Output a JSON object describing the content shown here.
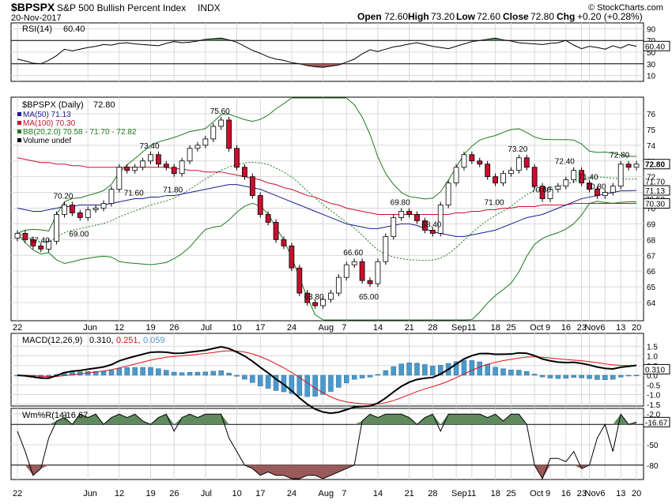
{
  "header": {
    "symbol": "$BPSPX",
    "name": "S&P 500 Bullish Percent Index",
    "exchange": "INDX",
    "date": "20-Nov-2017",
    "open_label": "Open",
    "open": "72.60",
    "high_label": "High",
    "high": "73.20",
    "low_label": "Low",
    "low": "72.60",
    "close_label": "Close",
    "close": "72.80",
    "chg_label": "Chg",
    "chg": "+0.20 (+0.28%)",
    "watermark": "© StockCharts.com"
  },
  "colors": {
    "up_candle": "#ffffff",
    "down_candle": "#c8102e",
    "candle_outline": "#000000",
    "ma50": "#1c1c8c",
    "ma100": "#c8102e",
    "bollinger": "#1e7a1e",
    "macd_line": "#000000",
    "macd_signal": "#e01010",
    "macd_hist": "#4a9acb",
    "overbought_fill": "#5e8a5e",
    "oversold_fill": "#9a5a5a",
    "grid": "#d8d8d8",
    "panel_border": "#000000"
  },
  "chart_data": [
    {
      "type": "line",
      "panel": "rsi",
      "title": "RSI(14)",
      "value_text": "60.40",
      "yticks": [
        "90",
        "70",
        "50",
        "30",
        "10"
      ],
      "ylim": [
        0,
        100
      ],
      "levels": [
        70,
        30
      ],
      "current_label": "60.40",
      "values": [
        38,
        35,
        31,
        30,
        36,
        44,
        55,
        52,
        55,
        58,
        60,
        63,
        62,
        65,
        66,
        64,
        63,
        62,
        61,
        65,
        68,
        66,
        67,
        69,
        72,
        73,
        74,
        71,
        67,
        60,
        53,
        48,
        42,
        38,
        36,
        32,
        30,
        27,
        25,
        24,
        26,
        28,
        33,
        38,
        47,
        54,
        51,
        55,
        59,
        61,
        64,
        66,
        63,
        60,
        58,
        56,
        60,
        64,
        68,
        70,
        72,
        74,
        71,
        69,
        66,
        65,
        64,
        63,
        65,
        66,
        70,
        62,
        56,
        60,
        58,
        55,
        61,
        57,
        63,
        60
      ]
    },
    {
      "type": "candlestick",
      "panel": "price",
      "title": "$BPSPX (Daily)",
      "value_text": "72.80",
      "legend": [
        {
          "label": "MA(50)",
          "value": "71.13",
          "color_key": "ma50"
        },
        {
          "label": "MA(100)",
          "value": "70.30",
          "color_key": "ma100"
        },
        {
          "label": "BB(20,2.0)",
          "value": "70.58 - 71.70 - 72.82",
          "color_key": "bollinger"
        },
        {
          "label": "Volume undef",
          "value": "",
          "color_key": "candle_outline"
        }
      ],
      "yticks": [
        "76",
        "75",
        "74",
        "73",
        "72",
        "71",
        "70",
        "69",
        "68",
        "67",
        "66",
        "65",
        "64"
      ],
      "ylim": [
        63.4,
        77.0
      ],
      "close": [
        68.4,
        68.0,
        67.6,
        67.4,
        67.9,
        69.6,
        70.2,
        69.7,
        69.4,
        69.9,
        70.0,
        70.3,
        71.2,
        72.6,
        72.4,
        72.6,
        73.0,
        73.4,
        72.8,
        72.6,
        72.2,
        73.0,
        73.8,
        74.0,
        74.4,
        75.2,
        75.6,
        73.8,
        72.6,
        72.0,
        70.8,
        69.6,
        69.1,
        68.0,
        67.6,
        66.2,
        64.6,
        64.0,
        63.8,
        64.2,
        64.6,
        65.6,
        66.4,
        66.6,
        65.4,
        65.2,
        66.6,
        68.2,
        69.4,
        69.8,
        69.6,
        69.2,
        68.6,
        68.4,
        70.2,
        71.6,
        72.6,
        73.4,
        73.0,
        72.8,
        72.0,
        71.6,
        72.2,
        72.4,
        73.2,
        72.6,
        71.4,
        70.6,
        71.2,
        71.4,
        71.8,
        72.4,
        71.6,
        71.2,
        70.8,
        71.0,
        71.4,
        72.8,
        72.6,
        72.8
      ],
      "ma50": [
        70.0,
        69.9,
        69.8,
        69.8,
        69.9,
        70.0,
        70.1,
        70.1,
        70.2,
        70.2,
        70.2,
        70.2,
        70.3,
        70.4,
        70.5,
        70.6,
        70.6,
        70.7,
        70.7,
        70.8,
        70.8,
        70.9,
        71.0,
        71.1,
        71.2,
        71.3,
        71.4,
        71.5,
        71.5,
        71.4,
        71.3,
        71.2,
        71.0,
        70.8,
        70.6,
        70.4,
        70.2,
        70.0,
        69.8,
        69.6,
        69.4,
        69.2,
        69.0,
        68.9,
        68.8,
        68.7,
        68.7,
        68.8,
        68.9,
        69.0,
        69.0,
        68.9,
        68.7,
        68.5,
        68.4,
        68.3,
        68.2,
        68.2,
        68.3,
        68.4,
        68.5,
        68.6,
        68.8,
        69.0,
        69.2,
        69.4,
        69.5,
        69.6,
        69.8,
        70.0,
        70.2,
        70.4,
        70.6,
        70.7,
        70.8,
        70.9,
        71.0,
        71.1,
        71.1,
        71.13
      ],
      "ma100": [
        73.2,
        73.1,
        73.0,
        72.9,
        72.9,
        72.8,
        72.8,
        72.7,
        72.7,
        72.6,
        72.6,
        72.6,
        72.6,
        72.6,
        72.6,
        72.6,
        72.6,
        72.6,
        72.6,
        72.6,
        72.5,
        72.5,
        72.4,
        72.4,
        72.3,
        72.3,
        72.3,
        72.2,
        72.1,
        72.0,
        71.9,
        71.8,
        71.6,
        71.5,
        71.3,
        71.2,
        71.0,
        70.8,
        70.7,
        70.5,
        70.3,
        70.2,
        70.0,
        69.9,
        69.8,
        69.7,
        69.6,
        69.6,
        69.6,
        69.6,
        69.6,
        69.6,
        69.6,
        69.6,
        69.6,
        69.6,
        69.7,
        69.7,
        69.8,
        69.8,
        69.9,
        69.9,
        70.0,
        70.0,
        70.1,
        70.1,
        70.1,
        70.2,
        70.2,
        70.2,
        70.2,
        70.3,
        70.3,
        70.3,
        70.3,
        70.3,
        70.3,
        70.3,
        70.3,
        70.3
      ],
      "annotations": [
        {
          "i": 3,
          "v": 67.4,
          "text": "67.40"
        },
        {
          "i": 6,
          "v": 70.2,
          "text": "70.20"
        },
        {
          "i": 8,
          "v": 69.0,
          "text": "69.00"
        },
        {
          "i": 15,
          "v": 71.6,
          "text": "71.60"
        },
        {
          "i": 17,
          "v": 73.4,
          "text": "73.40"
        },
        {
          "i": 20,
          "v": 71.8,
          "text": "71.80"
        },
        {
          "i": 26,
          "v": 75.6,
          "text": "75.60"
        },
        {
          "i": 38,
          "v": 63.8,
          "text": "63.80"
        },
        {
          "i": 43,
          "v": 66.6,
          "text": "66.60"
        },
        {
          "i": 45,
          "v": 65.0,
          "text": "65.00"
        },
        {
          "i": 49,
          "v": 69.8,
          "text": "69.80"
        },
        {
          "i": 53,
          "v": 68.4,
          "text": "68.40"
        },
        {
          "i": 61,
          "v": 71.0,
          "text": "71.00"
        },
        {
          "i": 64,
          "v": 73.2,
          "text": "73.20"
        },
        {
          "i": 67,
          "v": 70.6,
          "text": "70.60"
        },
        {
          "i": 70,
          "v": 72.4,
          "text": "72.40"
        },
        {
          "i": 73,
          "v": 71.4,
          "text": "71.40"
        },
        {
          "i": 74,
          "v": 70.8,
          "text": "70.80"
        },
        {
          "i": 77,
          "v": 72.8,
          "text": "72.80"
        }
      ],
      "right_labels": [
        {
          "v": 72.8,
          "text": "72.80",
          "style": "box"
        },
        {
          "v": 71.7,
          "text": "71.70",
          "style": "plain"
        },
        {
          "v": 71.13,
          "text": "71.13",
          "style": "box"
        },
        {
          "v": 70.58,
          "text": "70.58",
          "style": "plain"
        },
        {
          "v": 70.3,
          "text": "70.30",
          "style": "box"
        }
      ]
    },
    {
      "type": "area",
      "panel": "macd",
      "title": "MACD(12,26,9)",
      "values_text": [
        "0.310,",
        "0.251,",
        "0.059"
      ],
      "yticks": [
        "1.5",
        "1.0",
        "0.5",
        "0.0",
        "-0.5",
        "-1.0",
        "-1.5",
        "-2.0"
      ],
      "ylim": [
        -2.4,
        1.9
      ],
      "current_label": "0.310"
    },
    {
      "type": "area",
      "panel": "williams",
      "title": "Wm%R(14)",
      "value_text": "-16.67",
      "yticks": [
        "-50",
        "-80"
      ],
      "ylim": [
        -100,
        0
      ],
      "levels": [
        -20,
        -80
      ],
      "current_label": "-16.67",
      "values": [
        -30,
        -60,
        -95,
        -85,
        -40,
        -15,
        -10,
        -20,
        -5,
        -10,
        -5,
        -20,
        -10,
        -5,
        -10,
        -5,
        -15,
        -20,
        -10,
        -5,
        -30,
        -10,
        -5,
        -10,
        -5,
        -5,
        -5,
        -40,
        -60,
        -80,
        -85,
        -95,
        -90,
        -95,
        -95,
        -100,
        -100,
        -95,
        -95,
        -100,
        -95,
        -90,
        -85,
        -80,
        -15,
        -5,
        -10,
        -5,
        -5,
        -5,
        -10,
        -20,
        -10,
        -5,
        -30,
        -5,
        -5,
        -5,
        -5,
        -5,
        -10,
        -5,
        -15,
        -5,
        -5,
        -20,
        -80,
        -100,
        -70,
        -70,
        -75,
        -60,
        -85,
        -80,
        -40,
        -20,
        -60,
        -5,
        -20,
        -16.67
      ]
    }
  ],
  "x_axis": {
    "ticks": [
      {
        "i": 0,
        "text": "22"
      },
      {
        "i": 10,
        "text": "Jun"
      },
      {
        "i": 14,
        "text": "12"
      },
      {
        "i": 18,
        "text": "19"
      },
      {
        "i": 22,
        "text": "26"
      },
      {
        "i": 26,
        "text": "Jul"
      },
      {
        "i": 30,
        "text": "10"
      },
      {
        "i": 34,
        "text": "17"
      },
      {
        "i": 38,
        "text": "24"
      },
      {
        "i": 42,
        "text": "Aug"
      },
      {
        "i": 46,
        "text": "7"
      },
      {
        "i": 50,
        "text": "14"
      },
      {
        "i": 54,
        "text": "21"
      },
      {
        "i": 58,
        "text": "28"
      },
      {
        "i": 61,
        "text": "Sep"
      },
      {
        "i": 63,
        "text": "11"
      },
      {
        "i": 66,
        "text": "18"
      },
      {
        "i": 69,
        "text": "25"
      },
      {
        "i": 72,
        "text": "Oct"
      },
      {
        "i": 74,
        "text": "9"
      },
      {
        "i": 76,
        "text": "16"
      },
      {
        "i": 78,
        "text": "23"
      },
      {
        "i": 80,
        "text": "Nov"
      },
      {
        "i": 82,
        "text": "6"
      },
      {
        "i": 84,
        "text": "13"
      },
      {
        "i": 86,
        "text": "20"
      }
    ]
  }
}
